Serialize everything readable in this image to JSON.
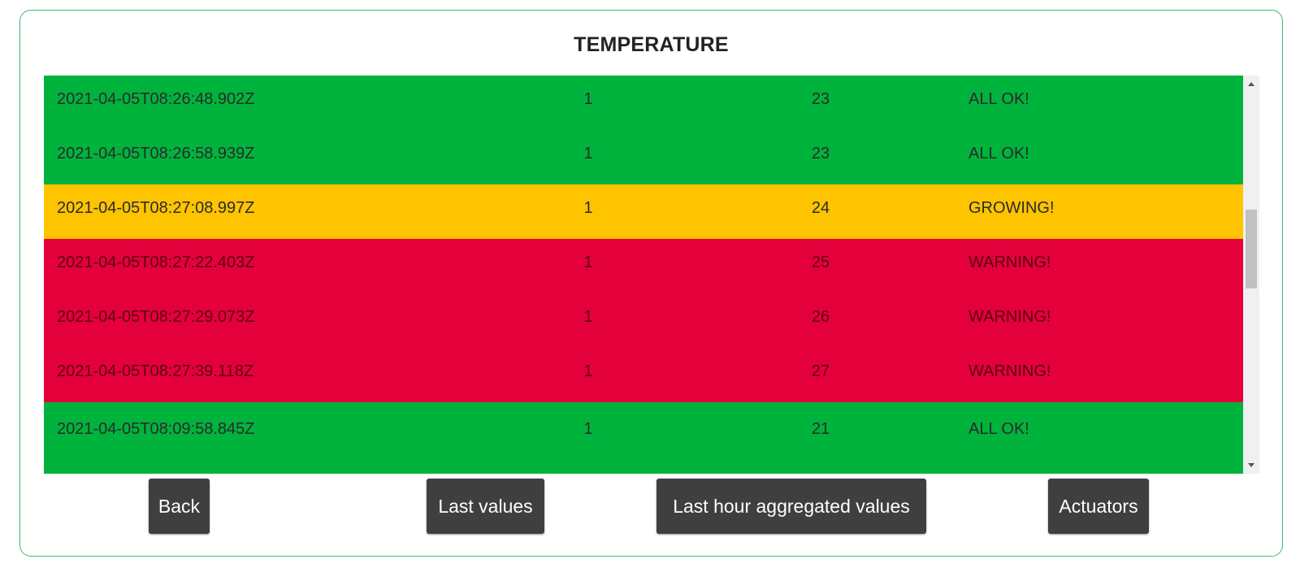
{
  "page": {
    "title": "TEMPERATURE"
  },
  "colors": {
    "border": "#3dbb6d",
    "ok": "#00b33c",
    "growing": "#ffc400",
    "warning": "#e4003b",
    "button": "#3f3f3f"
  },
  "table": {
    "rows": [
      {
        "timestamp": "2021-04-05T08:26:48.902Z",
        "id": "1",
        "value": "23",
        "status": "ALL OK!"
      },
      {
        "timestamp": "2021-04-05T08:26:58.939Z",
        "id": "1",
        "value": "23",
        "status": "ALL OK!"
      },
      {
        "timestamp": "2021-04-05T08:27:08.997Z",
        "id": "1",
        "value": "24",
        "status": "GROWING!"
      },
      {
        "timestamp": "2021-04-05T08:27:22.403Z",
        "id": "1",
        "value": "25",
        "status": "WARNING!"
      },
      {
        "timestamp": "2021-04-05T08:27:29.073Z",
        "id": "1",
        "value": "26",
        "status": "WARNING!"
      },
      {
        "timestamp": "2021-04-05T08:27:39.118Z",
        "id": "1",
        "value": "27",
        "status": "WARNING!"
      },
      {
        "timestamp": "2021-04-05T08:09:58.845Z",
        "id": "1",
        "value": "21",
        "status": "ALL OK!"
      }
    ]
  },
  "buttons": {
    "back": "Back",
    "last_values": "Last values",
    "last_hour": "Last hour aggregated values",
    "actuators": "Actuators"
  }
}
